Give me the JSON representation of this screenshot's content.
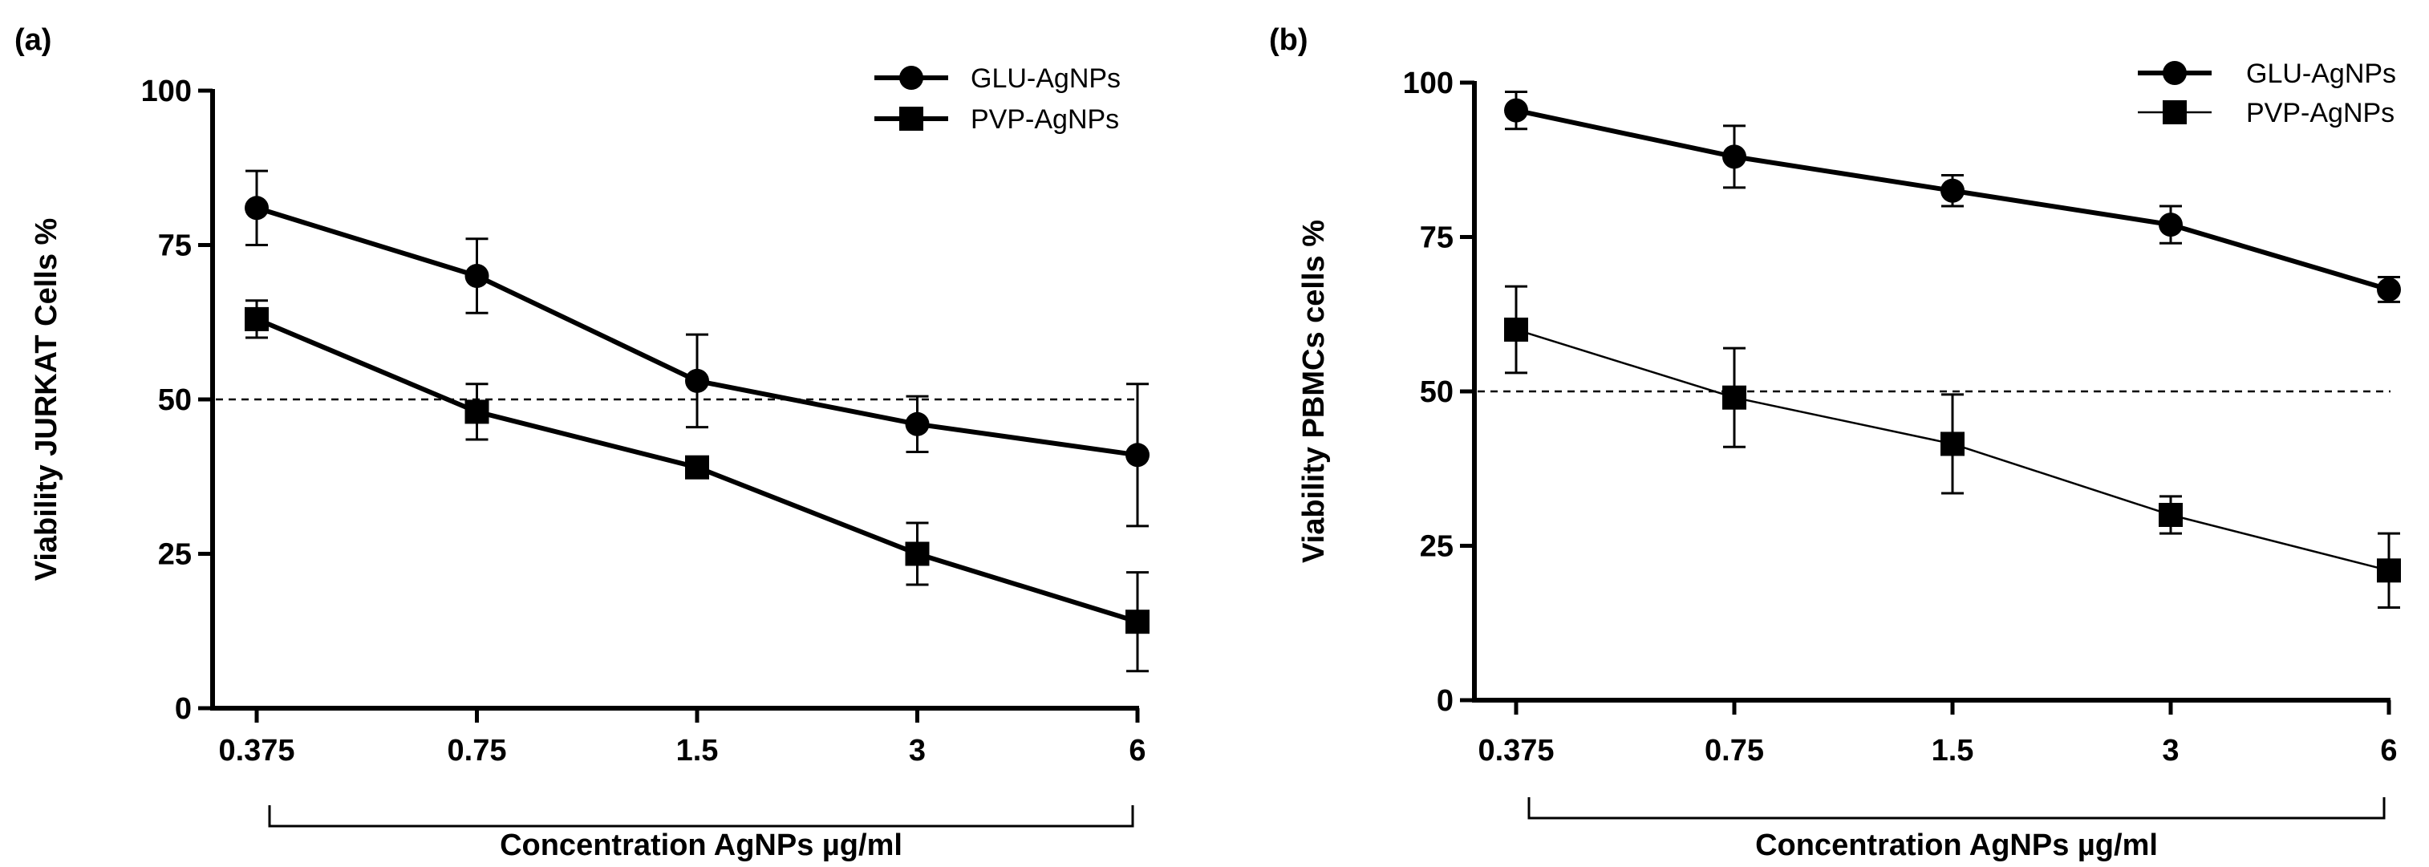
{
  "chart_data": [
    {
      "type": "line",
      "panel_label": "(a)",
      "xlabel": "Concentration AgNPs µg/ml",
      "ylabel": "Viability JURKAT Cells %",
      "categories": [
        "0.375",
        "0.75",
        "1.5",
        "3",
        "6"
      ],
      "ylim": [
        0,
        100
      ],
      "yticks": [
        0,
        25,
        50,
        75,
        100
      ],
      "reference_line": 50,
      "legend_position": "top-right",
      "series": [
        {
          "name": "GLU-AgNPs",
          "marker": "circle",
          "line": "thick",
          "values": [
            81,
            70,
            53,
            46,
            41
          ],
          "errors": [
            6,
            6,
            7.5,
            4.5,
            11.5
          ]
        },
        {
          "name": "PVP-AgNPs",
          "marker": "square",
          "line": "thick",
          "values": [
            63,
            48,
            39,
            25,
            14
          ],
          "errors": [
            3,
            4.5,
            1.5,
            5,
            8
          ]
        }
      ]
    },
    {
      "type": "line",
      "panel_label": "(b)",
      "xlabel": "Concentration AgNPs µg/ml",
      "ylabel": "Viability PBMCs cells %",
      "categories": [
        "0.375",
        "0.75",
        "1.5",
        "3",
        "6"
      ],
      "ylim": [
        0,
        100
      ],
      "yticks": [
        0,
        25,
        50,
        75,
        100
      ],
      "reference_line": 50,
      "legend_position": "top-right",
      "series": [
        {
          "name": "GLU-AgNPs",
          "marker": "circle",
          "line": "thick",
          "values": [
            95.5,
            88,
            82.5,
            77,
            66.5
          ],
          "errors": [
            3,
            5,
            2.5,
            3,
            2
          ]
        },
        {
          "name": "PVP-AgNPs",
          "marker": "square",
          "line": "thin",
          "values": [
            60,
            49,
            41.5,
            30,
            21
          ],
          "errors": [
            7,
            8,
            8,
            3,
            6
          ]
        }
      ]
    }
  ]
}
